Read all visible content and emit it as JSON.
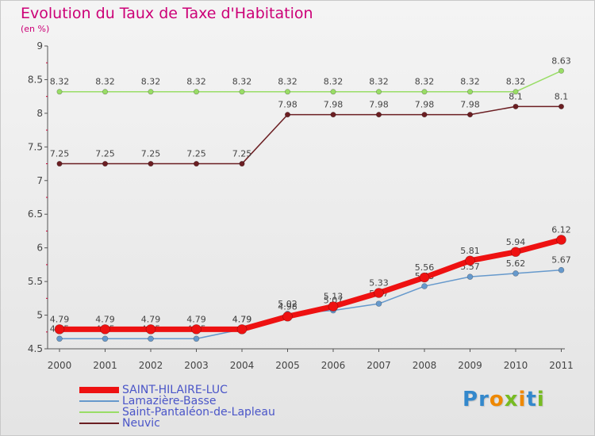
{
  "chart_data": {
    "type": "line",
    "title": "Evolution du Taux de Taxe d'Habitation",
    "subtitle": "(en %)",
    "categories": [
      "2000",
      "2001",
      "2002",
      "2003",
      "2004",
      "2005",
      "2006",
      "2007",
      "2008",
      "2009",
      "2010",
      "2011"
    ],
    "ylim": [
      4.5,
      9
    ],
    "yticks": [
      "4.5",
      "5",
      "5.5",
      "6",
      "6.5",
      "7",
      "7.5",
      "8",
      "8.5",
      "9"
    ],
    "grid": false,
    "legend_position": "bottom-left",
    "series": [
      {
        "name": "Saint-Pantaléon-de-Lapleau",
        "color": "#99dd66",
        "values": [
          8.32,
          8.32,
          8.32,
          8.32,
          8.32,
          8.32,
          8.32,
          8.32,
          8.32,
          8.32,
          8.32,
          8.63
        ],
        "labels": [
          "8.32",
          "8.32",
          "8.32",
          "8.32",
          "8.32",
          "8.32",
          "8.32",
          "8.32",
          "8.32",
          "8.32",
          "8.32",
          "8.63"
        ]
      },
      {
        "name": "Neuvic",
        "color": "#6b1e22",
        "values": [
          7.25,
          7.25,
          7.25,
          7.25,
          7.25,
          7.98,
          7.98,
          7.98,
          7.98,
          7.98,
          8.1,
          8.1
        ],
        "labels": [
          "7.25",
          "7.25",
          "7.25",
          "7.25",
          "7.25",
          "7.98",
          "7.98",
          "7.98",
          "7.98",
          "7.98",
          "8.1",
          "8.1"
        ]
      },
      {
        "name": "Lamazière-Basse",
        "color": "#6699cc",
        "values": [
          4.65,
          4.65,
          4.65,
          4.65,
          4.79,
          5.02,
          5.07,
          5.17,
          5.43,
          5.57,
          5.62,
          5.67
        ],
        "labels": [
          "4.65",
          "4.65",
          "4.65",
          "4.65",
          "4.79",
          "5.02",
          "5.07",
          "5.17",
          "5.43",
          "5.57",
          "5.62",
          "5.67"
        ]
      },
      {
        "name": "SAINT-HILAIRE-LUC",
        "color": "#ee1111",
        "values": [
          4.79,
          4.79,
          4.79,
          4.79,
          4.79,
          4.98,
          5.13,
          5.33,
          5.56,
          5.81,
          5.94,
          6.12
        ],
        "labels": [
          "4.79",
          "4.79",
          "4.79",
          "4.79",
          "4.79",
          "4.98",
          "5.13",
          "5.33",
          "5.56",
          "5.81",
          "5.94",
          "6.12"
        ]
      }
    ],
    "legend": [
      {
        "name": "SAINT-HILAIRE-LUC",
        "color": "#ee1111"
      },
      {
        "name": "Lamazière-Basse",
        "color": "#6699cc"
      },
      {
        "name": "Saint-Pantaléon-de-Lapleau",
        "color": "#99dd66"
      },
      {
        "name": "Neuvic",
        "color": "#6b1e22"
      }
    ]
  },
  "logo": {
    "letters": [
      "P",
      "r",
      "o",
      "x",
      "i",
      "t",
      "i"
    ],
    "colors": [
      "#3388cc",
      "#3388cc",
      "#ee8800",
      "#77bb22",
      "#ee8800",
      "#3388cc",
      "#77bb22"
    ]
  }
}
